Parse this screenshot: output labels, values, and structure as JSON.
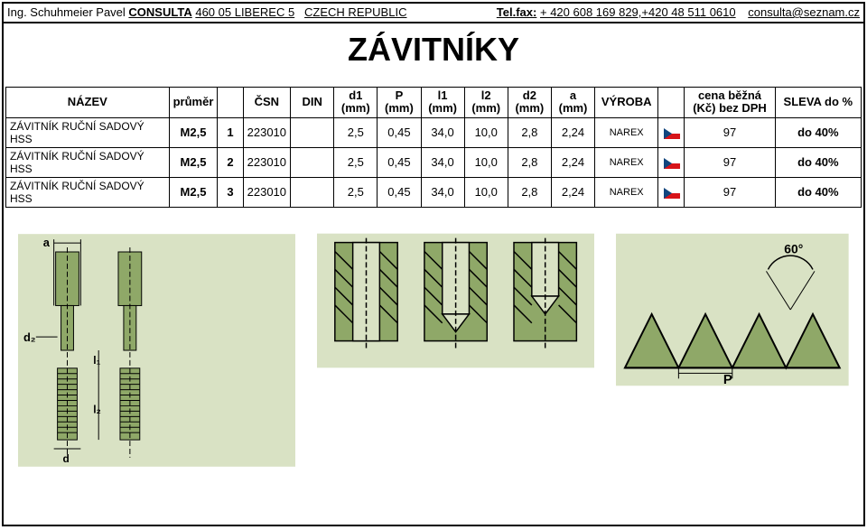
{
  "header": {
    "prefix": "Ing. Schuhmeier Pavel",
    "company": "CONSULTA",
    "addr1": "460 05 LIBEREC 5",
    "country": "CZECH REPUBLIC",
    "fax_label": "Tel.fax:",
    "fax": "+ 420 608 169 829,+420 48 511 0610",
    "email": "consulta@seznam.cz"
  },
  "title": "ZÁVITNÍKY",
  "table": {
    "headers": {
      "nazev": "NÁZEV",
      "prumer": "průměr",
      "csn": "ČSN",
      "din": "DIN",
      "d1": "d1 (mm)",
      "p": "P (mm)",
      "l1": "l1 (mm)",
      "l2": "l2 (mm)",
      "d2": "d2 (mm)",
      "a": "a (mm)",
      "vyroba": "VÝROBA",
      "cena": "cena běžná (Kč) bez DPH",
      "sleva": "SLEVA do %"
    },
    "rows": [
      {
        "name": "ZÁVITNÍK RUČNÍ SADOVÝ HSS",
        "spec": "M2,5",
        "set": "1",
        "csn": "223010",
        "din": "",
        "d1": "2,5",
        "p": "0,45",
        "l1": "34,0",
        "l2": "10,0",
        "d2": "2,8",
        "a": "2,24",
        "maker": "NAREX",
        "price": "97",
        "discount": "do 40%"
      },
      {
        "name": "ZÁVITNÍK RUČNÍ SADOVÝ HSS",
        "spec": "M2,5",
        "set": "2",
        "csn": "223010",
        "din": "",
        "d1": "2,5",
        "p": "0,45",
        "l1": "34,0",
        "l2": "10,0",
        "d2": "2,8",
        "a": "2,24",
        "maker": "NAREX",
        "price": "97",
        "discount": "do 40%"
      },
      {
        "name": "ZÁVITNÍK RUČNÍ SADOVÝ HSS",
        "spec": "M2,5",
        "set": "3",
        "csn": "223010",
        "din": "",
        "d1": "2,5",
        "p": "0,45",
        "l1": "34,0",
        "l2": "10,0",
        "d2": "2,8",
        "a": "2,24",
        "maker": "NAREX",
        "price": "97",
        "discount": "do 40%"
      }
    ]
  },
  "colors": {
    "diagram_fill": "#8fa868",
    "diagram_bg": "#d9e2c4",
    "flag_blue": "#11457e",
    "flag_red": "#d7141a",
    "flag_white": "#ffffff"
  }
}
